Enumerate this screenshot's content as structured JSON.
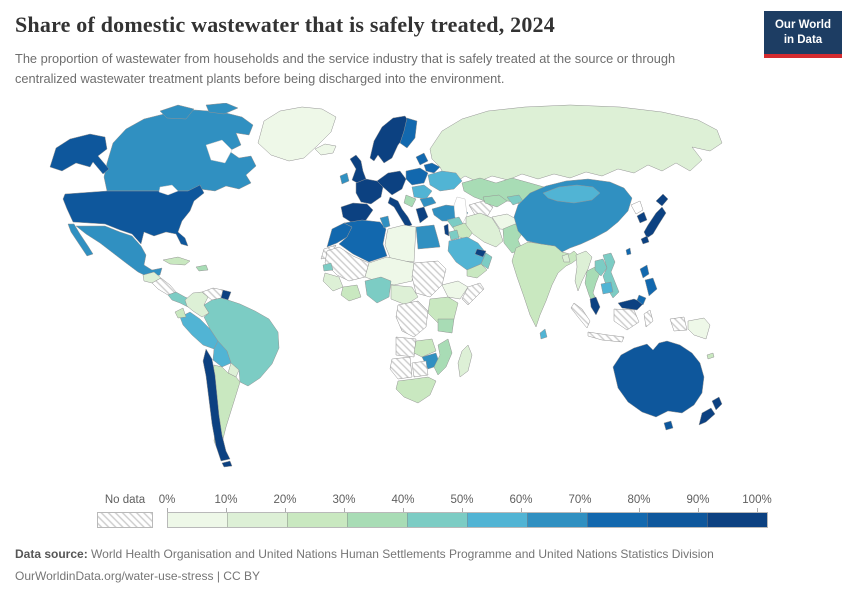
{
  "header": {
    "title": "Share of domestic wastewater that is safely treated, 2024",
    "subtitle": "The proportion of wastewater from households and the service industry that is safely treated at the source or through centralized wastewater treatment plants before being discharged into the environment.",
    "logo_line1": "Our World",
    "logo_line2": "in Data",
    "logo_bg": "#1d3d63",
    "logo_bar": "#d42b2f"
  },
  "legend": {
    "no_data_label": "No data"
  },
  "footer": {
    "source_label": "Data source:",
    "source_text": " World Health Organisation and United Nations Human Settlements Programme and United Nations Statistics Division",
    "link_line": "OurWorldinData.org/water-use-stress | CC BY"
  },
  "chart_data": {
    "type": "choropleth_map",
    "title": "Share of domestic wastewater that is safely treated, 2024",
    "unit": "% of domestic wastewater safely treated",
    "legend_position": "bottom",
    "legend_ticks": [
      "0%",
      "10%",
      "20%",
      "30%",
      "40%",
      "50%",
      "60%",
      "70%",
      "80%",
      "90%",
      "100%"
    ],
    "legend_bins": [
      {
        "range": "0-10%",
        "color": "#eef8e8"
      },
      {
        "range": "10-20%",
        "color": "#ddf0d6"
      },
      {
        "range": "20-30%",
        "color": "#c9e8c0"
      },
      {
        "range": "30-40%",
        "color": "#a8dcb5"
      },
      {
        "range": "40-50%",
        "color": "#7cccc4"
      },
      {
        "range": "50-60%",
        "color": "#51b4d4"
      },
      {
        "range": "60-70%",
        "color": "#3090c1"
      },
      {
        "range": "70-80%",
        "color": "#1268ae"
      },
      {
        "range": "80-90%",
        "color": "#0e579c"
      },
      {
        "range": "90-100%",
        "color": "#0c4181"
      }
    ],
    "regions": {
      "greenland": {
        "label": "Greenland",
        "value": "0-10%",
        "color": "#eef8e8"
      },
      "canada": {
        "label": "Canada",
        "value": "60-70%",
        "color": "#3090c1"
      },
      "usa": {
        "label": "United States",
        "value": "80-90%",
        "color": "#0e579c"
      },
      "mexico": {
        "label": "Mexico",
        "value": "60-70%",
        "color": "#3090c1"
      },
      "guatemala_region": {
        "label": "Guatemala & Belize",
        "value": "10-20%",
        "color": "#ddf0d6"
      },
      "nicaragua_region": {
        "label": "Honduras & Nicaragua",
        "value": "No data",
        "color": "hatch"
      },
      "costa_panama": {
        "label": "Costa Rica & Panama",
        "value": "40-50%",
        "color": "#7cccc4"
      },
      "cuba": {
        "label": "Cuba",
        "value": "20-30%",
        "color": "#c9e8c0"
      },
      "hispaniola": {
        "label": "Dominican Republic & Haiti",
        "value": "30-40%",
        "color": "#a8dcb5"
      },
      "colombia": {
        "label": "Colombia",
        "value": "10-20%",
        "color": "#ddf0d6"
      },
      "venezuela": {
        "label": "Venezuela",
        "value": "No data",
        "color": "hatch"
      },
      "guyana_suriname": {
        "label": "Guyana & Suriname",
        "value": "90-100%",
        "color": "#0c4181"
      },
      "brazil": {
        "label": "Brazil",
        "value": "40-50%",
        "color": "#7cccc4"
      },
      "peru": {
        "label": "Peru",
        "value": "50-60%",
        "color": "#51b4d4"
      },
      "ecuador": {
        "label": "Ecuador",
        "value": "20-30%",
        "color": "#c9e8c0"
      },
      "bolivia": {
        "label": "Bolivia",
        "value": "50-60%",
        "color": "#51b4d4"
      },
      "paraguay": {
        "label": "Paraguay",
        "value": "10-20%",
        "color": "#ddf0d6"
      },
      "chile": {
        "label": "Chile",
        "value": "90-100%",
        "color": "#0c4181"
      },
      "argentina": {
        "label": "Argentina",
        "value": "20-30%",
        "color": "#c9e8c0"
      },
      "iceland": {
        "label": "Iceland",
        "value": "0-10%",
        "color": "#eef8e8"
      },
      "uk": {
        "label": "United Kingdom",
        "value": "90-100%",
        "color": "#0c4181"
      },
      "ireland": {
        "label": "Ireland",
        "value": "60-70%",
        "color": "#3090c1"
      },
      "norway_sweden": {
        "label": "Norway & Sweden",
        "value": "90-100%",
        "color": "#0c4181"
      },
      "finland": {
        "label": "Finland",
        "value": "70-80%",
        "color": "#1268ae"
      },
      "france": {
        "label": "France",
        "value": "90-100%",
        "color": "#0c4181"
      },
      "germany_central": {
        "label": "Germany & Central Europe",
        "value": "90-100%",
        "color": "#0c4181"
      },
      "spain_portugal": {
        "label": "Spain & Portugal",
        "value": "90-100%",
        "color": "#0c4181"
      },
      "italy": {
        "label": "Italy",
        "value": "90-100%",
        "color": "#0c4181"
      },
      "poland_czech": {
        "label": "Poland & Czechia",
        "value": "70-80%",
        "color": "#1268ae"
      },
      "baltics": {
        "label": "Baltic states",
        "value": "70-80%",
        "color": "#1268ae"
      },
      "belarus": {
        "label": "Belarus",
        "value": "70-80%",
        "color": "#1268ae"
      },
      "ukraine": {
        "label": "Ukraine",
        "value": "50-60%",
        "color": "#51b4d4"
      },
      "romania_hungary": {
        "label": "Romania & Hungary",
        "value": "50-60%",
        "color": "#51b4d4"
      },
      "balkans": {
        "label": "Western Balkans",
        "value": "30-40%",
        "color": "#a8dcb5"
      },
      "bulgaria": {
        "label": "Bulgaria",
        "value": "60-70%",
        "color": "#3090c1"
      },
      "greece": {
        "label": "Greece",
        "value": "90-100%",
        "color": "#0c4181"
      },
      "turkey": {
        "label": "Turkey",
        "value": "60-70%",
        "color": "#3090c1"
      },
      "russia": {
        "label": "Russia",
        "value": "10-20%",
        "color": "#ddf0d6"
      },
      "kazakhstan": {
        "label": "Kazakhstan",
        "value": "30-40%",
        "color": "#a8dcb5"
      },
      "turkmenistan": {
        "label": "Turkmenistan",
        "value": "No data",
        "color": "hatch"
      },
      "uzbekistan": {
        "label": "Uzbekistan",
        "value": "30-40%",
        "color": "#a8dcb5"
      },
      "kyrgyz_tajik": {
        "label": "Kyrgyzstan & Tajikistan",
        "value": "40-50%",
        "color": "#7cccc4"
      },
      "syria": {
        "label": "Syria",
        "value": "40-50%",
        "color": "#7cccc4"
      },
      "iraq": {
        "label": "Iraq",
        "value": "20-30%",
        "color": "#c9e8c0"
      },
      "israel": {
        "label": "Israel",
        "value": "90-100%",
        "color": "#0c4181"
      },
      "jordan": {
        "label": "Jordan",
        "value": "40-50%",
        "color": "#7cccc4"
      },
      "saudi_arabia": {
        "label": "Saudi Arabia",
        "value": "50-60%",
        "color": "#51b4d4"
      },
      "yemen": {
        "label": "Yemen",
        "value": "20-30%",
        "color": "#c9e8c0"
      },
      "oman": {
        "label": "Oman",
        "value": "40-50%",
        "color": "#7cccc4"
      },
      "uae_qatar": {
        "label": "United Arab Emirates & Qatar",
        "value": "90-100%",
        "color": "#0c4181"
      },
      "iran": {
        "label": "Iran",
        "value": "10-20%",
        "color": "#ddf0d6"
      },
      "afghanistan": {
        "label": "Afghanistan",
        "value": "0-10%",
        "color": "#eef8e8"
      },
      "pakistan": {
        "label": "Pakistan",
        "value": "30-40%",
        "color": "#a8dcb5"
      },
      "india": {
        "label": "India",
        "value": "20-30%",
        "color": "#c9e8c0"
      },
      "bangladesh": {
        "label": "Bangladesh",
        "value": "10-20%",
        "color": "#ddf0d6"
      },
      "sri_lanka": {
        "label": "Sri Lanka",
        "value": "50-60%",
        "color": "#51b4d4"
      },
      "china": {
        "label": "China",
        "value": "60-70%",
        "color": "#3090c1"
      },
      "mongolia": {
        "label": "Mongolia",
        "value": "50-60%",
        "color": "#51b4d4"
      },
      "north_korea": {
        "label": "North Korea",
        "value": "No data",
        "color": "#ffffff"
      },
      "south_korea": {
        "label": "South Korea",
        "value": "90-100%",
        "color": "#0c4181"
      },
      "japan": {
        "label": "Japan",
        "value": "90-100%",
        "color": "#0c4181"
      },
      "taiwan": {
        "label": "Taiwan",
        "value": "70-80%",
        "color": "#1268ae"
      },
      "myanmar": {
        "label": "Myanmar",
        "value": "10-20%",
        "color": "#ddf0d6"
      },
      "thailand": {
        "label": "Thailand",
        "value": "30-40%",
        "color": "#a8dcb5"
      },
      "laos": {
        "label": "Laos",
        "value": "40-50%",
        "color": "#7cccc4"
      },
      "vietnam": {
        "label": "Vietnam",
        "value": "40-50%",
        "color": "#7cccc4"
      },
      "cambodia": {
        "label": "Cambodia",
        "value": "50-60%",
        "color": "#51b4d4"
      },
      "malaysia": {
        "label": "Malaysia",
        "value": "90-100%",
        "color": "#0c4181"
      },
      "philippines": {
        "label": "Philippines",
        "value": "70-80%",
        "color": "#1268ae"
      },
      "indonesia": {
        "label": "Indonesia",
        "value": "No data",
        "color": "hatch"
      },
      "papua_new_guinea": {
        "label": "Papua New Guinea",
        "value": "0-10%",
        "color": "#eef8e8"
      },
      "australia": {
        "label": "Australia",
        "value": "80-90%",
        "color": "#0e579c"
      },
      "new_zealand": {
        "label": "New Zealand",
        "value": "90-100%",
        "color": "#0c4181"
      },
      "fiji": {
        "label": "Fiji",
        "value": "20-30%",
        "color": "#c9e8c0"
      },
      "morocco": {
        "label": "Morocco",
        "value": "70-80%",
        "color": "#1268ae"
      },
      "western_sahara": {
        "label": "Western Sahara",
        "value": "No data",
        "color": "hatch"
      },
      "algeria": {
        "label": "Algeria",
        "value": "70-80%",
        "color": "#1268ae"
      },
      "tunisia": {
        "label": "Tunisia",
        "value": "60-70%",
        "color": "#3090c1"
      },
      "libya": {
        "label": "Libya",
        "value": "0-10%",
        "color": "#eef8e8"
      },
      "egypt": {
        "label": "Egypt",
        "value": "60-70%",
        "color": "#3090c1"
      },
      "mauritania_mali": {
        "label": "Mauritania & Mali",
        "value": "No data",
        "color": "hatch"
      },
      "senegal": {
        "label": "Senegal",
        "value": "40-50%",
        "color": "#7cccc4"
      },
      "guinea_region": {
        "label": "Guinea region",
        "value": "10-20%",
        "color": "#ddf0d6"
      },
      "ivory_ghana": {
        "label": "Côte d'Ivoire & Ghana",
        "value": "20-30%",
        "color": "#c9e8c0"
      },
      "niger_chad": {
        "label": "Niger & Chad",
        "value": "0-10%",
        "color": "#eef8e8"
      },
      "nigeria": {
        "label": "Nigeria",
        "value": "40-50%",
        "color": "#7cccc4"
      },
      "sudan": {
        "label": "Sudan",
        "value": "No data",
        "color": "hatch"
      },
      "cameroon_car": {
        "label": "Cameroon & Central African Republic",
        "value": "10-20%",
        "color": "#ddf0d6"
      },
      "ethiopia": {
        "label": "Ethiopia",
        "value": "0-10%",
        "color": "#eef8e8"
      },
      "somalia": {
        "label": "Somalia",
        "value": "No data",
        "color": "hatch"
      },
      "kenya_uganda": {
        "label": "Kenya & Uganda",
        "value": "20-30%",
        "color": "#c9e8c0"
      },
      "tanzania": {
        "label": "Tanzania",
        "value": "30-40%",
        "color": "#a8dcb5"
      },
      "drc": {
        "label": "Democratic Republic of Congo",
        "value": "No data",
        "color": "hatch"
      },
      "angola": {
        "label": "Angola",
        "value": "No data",
        "color": "hatch"
      },
      "zambia": {
        "label": "Zambia",
        "value": "20-30%",
        "color": "#c9e8c0"
      },
      "zimbabwe": {
        "label": "Zimbabwe",
        "value": "60-70%",
        "color": "#3090c1"
      },
      "mozambique": {
        "label": "Mozambique",
        "value": "30-40%",
        "color": "#a8dcb5"
      },
      "namibia": {
        "label": "Namibia",
        "value": "No data",
        "color": "hatch"
      },
      "botswana": {
        "label": "Botswana",
        "value": "No data",
        "color": "hatch"
      },
      "south_africa": {
        "label": "South Africa",
        "value": "20-30%",
        "color": "#c9e8c0"
      },
      "madagascar": {
        "label": "Madagascar",
        "value": "10-20%",
        "color": "#ddf0d6"
      }
    }
  }
}
